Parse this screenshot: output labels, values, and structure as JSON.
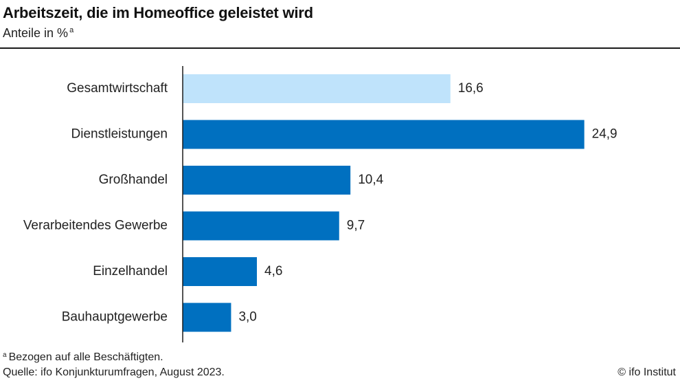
{
  "header": {
    "title": "Arbeitszeit, die im Homeoffice geleistet wird",
    "subtitle": "Anteile in %",
    "subtitle_marker": "a"
  },
  "footer": {
    "footnote_marker": "a",
    "footnote": "Bezogen auf alle Beschäftigten.",
    "source": "Quelle: ifo Konjunkturumfragen, August 2023.",
    "copyright": "© ifo Institut"
  },
  "colors": {
    "highlight": "#bfe3fb",
    "bar": "#0070c0",
    "axis": "#1a1a1a"
  },
  "chart_data": {
    "type": "bar",
    "orientation": "horizontal",
    "categories": [
      "Gesamtwirtschaft",
      "Dienstleistungen",
      "Großhandel",
      "Verarbeitendes Gewerbe",
      "Einzelhandel",
      "Bauhauptgewerbe"
    ],
    "values": [
      16.6,
      24.9,
      10.4,
      9.7,
      4.6,
      3.0
    ],
    "value_labels": [
      "16,6",
      "24,9",
      "10,4",
      "9,7",
      "4,6",
      "3,0"
    ],
    "highlighted_category": "Gesamtwirtschaft",
    "xlim": [
      0,
      25
    ],
    "grid": false,
    "legend": "none"
  }
}
